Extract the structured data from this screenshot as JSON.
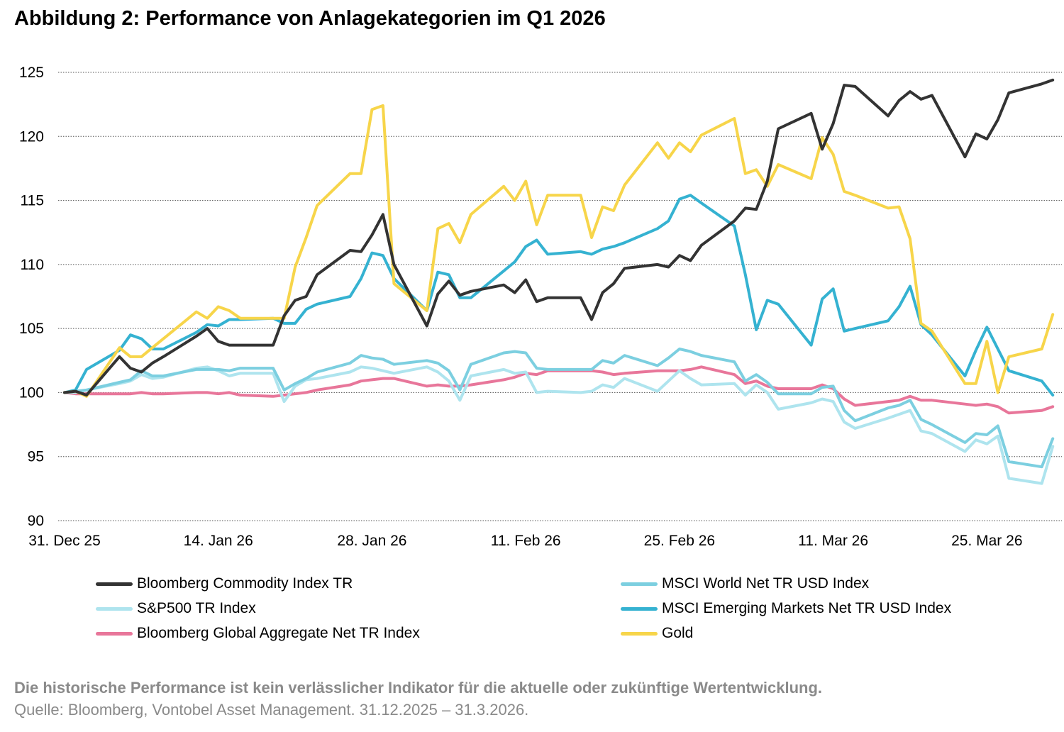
{
  "title": "Abbildung 2: Performance von Anlagekategorien im Q1 2026",
  "footnote_bold": "Die historische Performance ist kein verlässlicher Indikator für die aktuelle oder zukünftige Wertentwicklung.",
  "footnote_source": "Quelle: Bloomberg, Vontobel Asset Management. 31.12.2025 – 31.3.2026.",
  "chart_data": {
    "type": "line",
    "ylim": [
      90,
      125
    ],
    "yticks": [
      "90",
      "95",
      "100",
      "105",
      "110",
      "115",
      "120",
      "125"
    ],
    "xticks": [
      {
        "label": "31. Dec 25",
        "day": 0
      },
      {
        "label": "14. Jan 26",
        "day": 14
      },
      {
        "label": "28. Jan 26",
        "day": 28
      },
      {
        "label": "11. Feb 26",
        "day": 42
      },
      {
        "label": "25. Feb 26",
        "day": 56
      },
      {
        "label": "11. Mar 26",
        "day": 70
      },
      {
        "label": "25. Mar 26",
        "day": 84
      }
    ],
    "x_days": [
      0,
      1,
      2,
      5,
      6,
      7,
      8,
      9,
      12,
      13,
      14,
      15,
      16,
      19,
      20,
      21,
      22,
      23,
      26,
      27,
      28,
      29,
      30,
      33,
      34,
      35,
      36,
      37,
      40,
      41,
      42,
      43,
      44,
      47,
      48,
      49,
      50,
      51,
      54,
      55,
      56,
      57,
      58,
      61,
      62,
      63,
      64,
      65,
      68,
      69,
      70,
      71,
      72,
      75,
      76,
      77,
      78,
      79,
      82,
      83,
      84,
      85,
      86,
      89,
      90
    ],
    "grid": true,
    "series": [
      {
        "name": "Bloomberg Commodity Index TR",
        "color": "#333333",
        "values": [
          100,
          100.1,
          99.8,
          102.8,
          101.9,
          101.6,
          102.3,
          102.8,
          104.4,
          105.0,
          104.0,
          103.7,
          103.7,
          103.7,
          106.0,
          107.2,
          107.5,
          109.2,
          111.1,
          111.0,
          112.3,
          113.9,
          110.0,
          105.2,
          107.7,
          108.7,
          107.6,
          107.9,
          108.4,
          107.8,
          108.8,
          107.1,
          107.4,
          107.4,
          105.7,
          107.8,
          108.5,
          109.7,
          110.0,
          109.8,
          110.7,
          110.3,
          111.5,
          113.4,
          114.4,
          114.3,
          116.5,
          120.6,
          121.8,
          119.0,
          121.0,
          124.0,
          123.9,
          121.6,
          122.8,
          123.5,
          122.9,
          123.2,
          118.4,
          120.2,
          119.8,
          121.3,
          123.4,
          124.1,
          124.4
        ]
      },
      {
        "name": "MSCI World Net TR USD Index",
        "color": "#7ccfe0",
        "values": [
          100,
          100.1,
          100.2,
          100.8,
          101.0,
          101.7,
          101.3,
          101.3,
          101.8,
          101.8,
          101.8,
          101.7,
          101.9,
          101.9,
          100.2,
          100.7,
          101.1,
          101.6,
          102.3,
          102.9,
          102.7,
          102.6,
          102.2,
          102.5,
          102.3,
          101.7,
          100.2,
          102.2,
          103.1,
          103.2,
          103.1,
          101.9,
          101.8,
          101.8,
          101.8,
          102.5,
          102.3,
          102.9,
          102.1,
          102.7,
          103.4,
          103.2,
          102.9,
          102.4,
          100.9,
          101.4,
          100.8,
          99.9,
          99.9,
          100.4,
          100.5,
          98.6,
          97.8,
          98.8,
          99.0,
          99.4,
          97.9,
          97.5,
          96.1,
          96.8,
          96.7,
          97.4,
          94.6,
          94.2,
          96.4
        ]
      },
      {
        "name": "S&P500 TR Index",
        "color": "#aee4ee",
        "values": [
          100,
          100.0,
          100.2,
          100.7,
          100.9,
          101.4,
          101.1,
          101.2,
          101.9,
          102.0,
          101.7,
          101.3,
          101.5,
          101.5,
          99.3,
          100.5,
          101.0,
          101.1,
          101.6,
          102.0,
          101.9,
          101.7,
          101.5,
          102.0,
          101.6,
          100.9,
          99.4,
          101.3,
          101.8,
          101.5,
          101.6,
          100.0,
          100.1,
          100.0,
          100.1,
          100.6,
          100.4,
          101.1,
          100.1,
          100.9,
          101.7,
          101.1,
          100.6,
          100.7,
          99.8,
          100.6,
          100.0,
          98.7,
          99.2,
          99.5,
          99.3,
          97.7,
          97.2,
          98.0,
          98.3,
          98.6,
          97.0,
          96.8,
          95.4,
          96.3,
          96.0,
          96.6,
          93.3,
          92.9,
          95.8
        ]
      },
      {
        "name": "MSCI Emerging Markets Net TR USD Index",
        "color": "#35b2d1",
        "values": [
          100,
          100.2,
          101.8,
          103.3,
          104.5,
          104.2,
          103.4,
          103.4,
          104.7,
          105.3,
          105.2,
          105.7,
          105.7,
          105.8,
          105.4,
          105.4,
          106.5,
          106.9,
          107.5,
          108.9,
          110.9,
          110.7,
          108.9,
          106.4,
          109.4,
          109.2,
          107.4,
          107.4,
          109.5,
          110.2,
          111.4,
          111.9,
          110.8,
          111.0,
          110.8,
          111.2,
          111.4,
          111.7,
          112.8,
          113.4,
          115.1,
          115.4,
          114.8,
          113.0,
          109.2,
          104.9,
          107.2,
          106.9,
          103.7,
          107.3,
          108.1,
          104.8,
          105.0,
          105.6,
          106.7,
          108.3,
          105.3,
          104.5,
          101.3,
          103.3,
          105.1,
          103.4,
          101.7,
          100.9,
          99.8
        ]
      },
      {
        "name": "Bloomberg Global Aggregate Net TR Index",
        "color": "#e8769a",
        "values": [
          100,
          99.9,
          99.9,
          99.9,
          99.9,
          100.0,
          99.9,
          99.9,
          100.0,
          100.0,
          99.9,
          100.0,
          99.8,
          99.7,
          99.8,
          99.9,
          100.0,
          100.2,
          100.6,
          100.9,
          101.0,
          101.1,
          101.1,
          100.5,
          100.6,
          100.5,
          100.5,
          100.6,
          101.0,
          101.2,
          101.5,
          101.4,
          101.7,
          101.7,
          101.7,
          101.6,
          101.4,
          101.5,
          101.7,
          101.7,
          101.7,
          101.8,
          102.0,
          101.4,
          100.7,
          100.9,
          100.5,
          100.3,
          100.3,
          100.6,
          100.3,
          99.5,
          99.0,
          99.3,
          99.4,
          99.7,
          99.4,
          99.4,
          99.1,
          99.0,
          99.1,
          98.9,
          98.4,
          98.6,
          98.9
        ]
      },
      {
        "name": "Gold",
        "color": "#f7d54a",
        "values": [
          100,
          100.1,
          99.7,
          103.5,
          102.8,
          102.8,
          103.5,
          104.2,
          106.3,
          105.8,
          106.7,
          106.4,
          105.8,
          105.8,
          105.8,
          109.8,
          112.1,
          114.6,
          117.1,
          117.1,
          122.1,
          122.4,
          108.5,
          106.4,
          112.8,
          113.2,
          111.7,
          113.9,
          116.1,
          115.0,
          116.5,
          113.1,
          115.4,
          115.4,
          112.1,
          114.5,
          114.2,
          116.2,
          119.5,
          118.3,
          119.5,
          118.8,
          120.1,
          121.4,
          117.1,
          117.4,
          116.1,
          117.8,
          116.7,
          119.9,
          118.6,
          115.7,
          115.4,
          114.4,
          114.5,
          112.0,
          105.4,
          104.8,
          100.7,
          100.7,
          104.0,
          100.0,
          102.8,
          103.4,
          106.1
        ]
      }
    ]
  },
  "legend": [
    {
      "label": "Bloomberg Commodity Index TR",
      "color": "#333333"
    },
    {
      "label": "MSCI World Net TR USD Index",
      "color": "#7ccfe0"
    },
    {
      "label": "S&P500 TR Index",
      "color": "#aee4ee"
    },
    {
      "label": "MSCI Emerging Markets Net TR USD Index",
      "color": "#35b2d1"
    },
    {
      "label": "Bloomberg Global Aggregate Net TR Index",
      "color": "#e8769a"
    },
    {
      "label": "Gold",
      "color": "#f7d54a"
    }
  ]
}
